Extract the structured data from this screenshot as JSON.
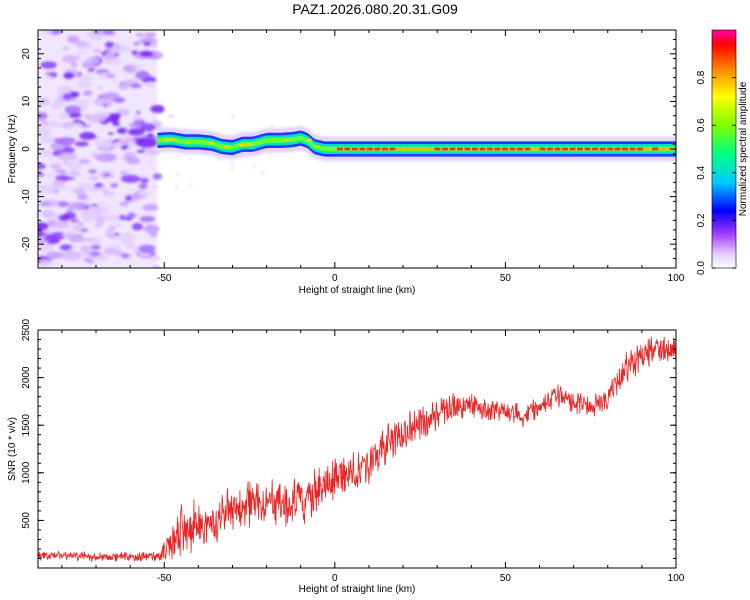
{
  "title": "PAZ1.2026.080.20.31.G09",
  "chart_data": [
    {
      "type": "heatmap",
      "name": "spectrogram",
      "xlabel": "Height of straight line (km)",
      "ylabel": "Frequency (Hz)",
      "xlim": [
        -87,
        100
      ],
      "ylim": [
        -25,
        25
      ],
      "xticks": [
        -50,
        0,
        50,
        100
      ],
      "xtick_labels": [
        "-50",
        "0",
        "50",
        "100"
      ],
      "yticks": [
        -20,
        -10,
        0,
        10,
        20
      ],
      "ytick_labels": [
        "-20",
        "-10",
        "0",
        "10",
        "20"
      ],
      "noise_region_x": [
        -87,
        -52
      ],
      "ridge": {
        "description_values": "dominant frequency (Hz) vs height (km)",
        "x": [
          -52,
          -48,
          -44,
          -40,
          -36,
          -33,
          -30,
          -27,
          -24,
          -20,
          -16,
          -12,
          -10,
          -8,
          -6,
          -3,
          0,
          5,
          10,
          15,
          20,
          25,
          30,
          40,
          50,
          60,
          70,
          80,
          90,
          100
        ],
        "y": [
          1.8,
          2.0,
          1.5,
          1.5,
          1.2,
          0.5,
          0.3,
          1.0,
          1.0,
          1.8,
          1.8,
          2.0,
          2.3,
          1.8,
          0.5,
          0.0,
          0.0,
          0.0,
          0.0,
          0.0,
          0.0,
          0.0,
          0.0,
          0.0,
          0.0,
          0.0,
          0.0,
          0.0,
          0.0,
          0.0
        ]
      },
      "colorbar": {
        "label": "Normalized spectral amplitude",
        "range": [
          0.0,
          1.0
        ],
        "ticks": [
          0.0,
          0.2,
          0.4,
          0.6,
          0.8
        ],
        "tick_labels": [
          "0.0",
          "0.2",
          "0.4",
          "0.6",
          "0.8"
        ]
      },
      "colors": {
        "low": "#e8d8ff",
        "mid_low": "#8040ff",
        "ridge_outer": "#1a3cff",
        "ridge_mid": "#00e0c0",
        "ridge_inner": "#ff2a2a"
      }
    },
    {
      "type": "line",
      "name": "snr",
      "xlabel": "Height of straight line (km)",
      "ylabel": "SNR (10 * v/v)",
      "xlim": [
        -87,
        100
      ],
      "ylim": [
        0,
        2500
      ],
      "xticks": [
        -50,
        0,
        50,
        100
      ],
      "xtick_labels": [
        "-50",
        "0",
        "50",
        "100"
      ],
      "yticks": [
        500,
        1000,
        1500,
        2000,
        2500
      ],
      "ytick_labels": [
        "500",
        "1000",
        "1500",
        "2000",
        "2500"
      ],
      "line_color": "#ee2222",
      "x": [
        -87,
        -80,
        -70,
        -60,
        -52,
        -50,
        -45,
        -40,
        -35,
        -30,
        -25,
        -20,
        -15,
        -10,
        -5,
        0,
        5,
        10,
        15,
        20,
        25,
        30,
        35,
        40,
        45,
        50,
        55,
        60,
        65,
        70,
        75,
        80,
        85,
        90,
        95,
        100
      ],
      "y": [
        130,
        130,
        120,
        120,
        120,
        200,
        400,
        450,
        480,
        650,
        700,
        700,
        650,
        700,
        800,
        930,
        1000,
        1100,
        1300,
        1400,
        1500,
        1600,
        1700,
        1700,
        1650,
        1650,
        1600,
        1700,
        1800,
        1750,
        1700,
        1800,
        2100,
        2250,
        2300,
        2300
      ],
      "noise_amplitude_y": [
        60,
        60,
        60,
        60,
        60,
        150,
        300,
        300,
        300,
        300,
        300,
        300,
        300,
        300,
        280,
        250,
        250,
        250,
        250,
        220,
        200,
        200,
        180,
        160,
        140,
        140,
        140,
        140,
        140,
        140,
        140,
        150,
        180,
        200,
        200,
        200
      ]
    }
  ]
}
